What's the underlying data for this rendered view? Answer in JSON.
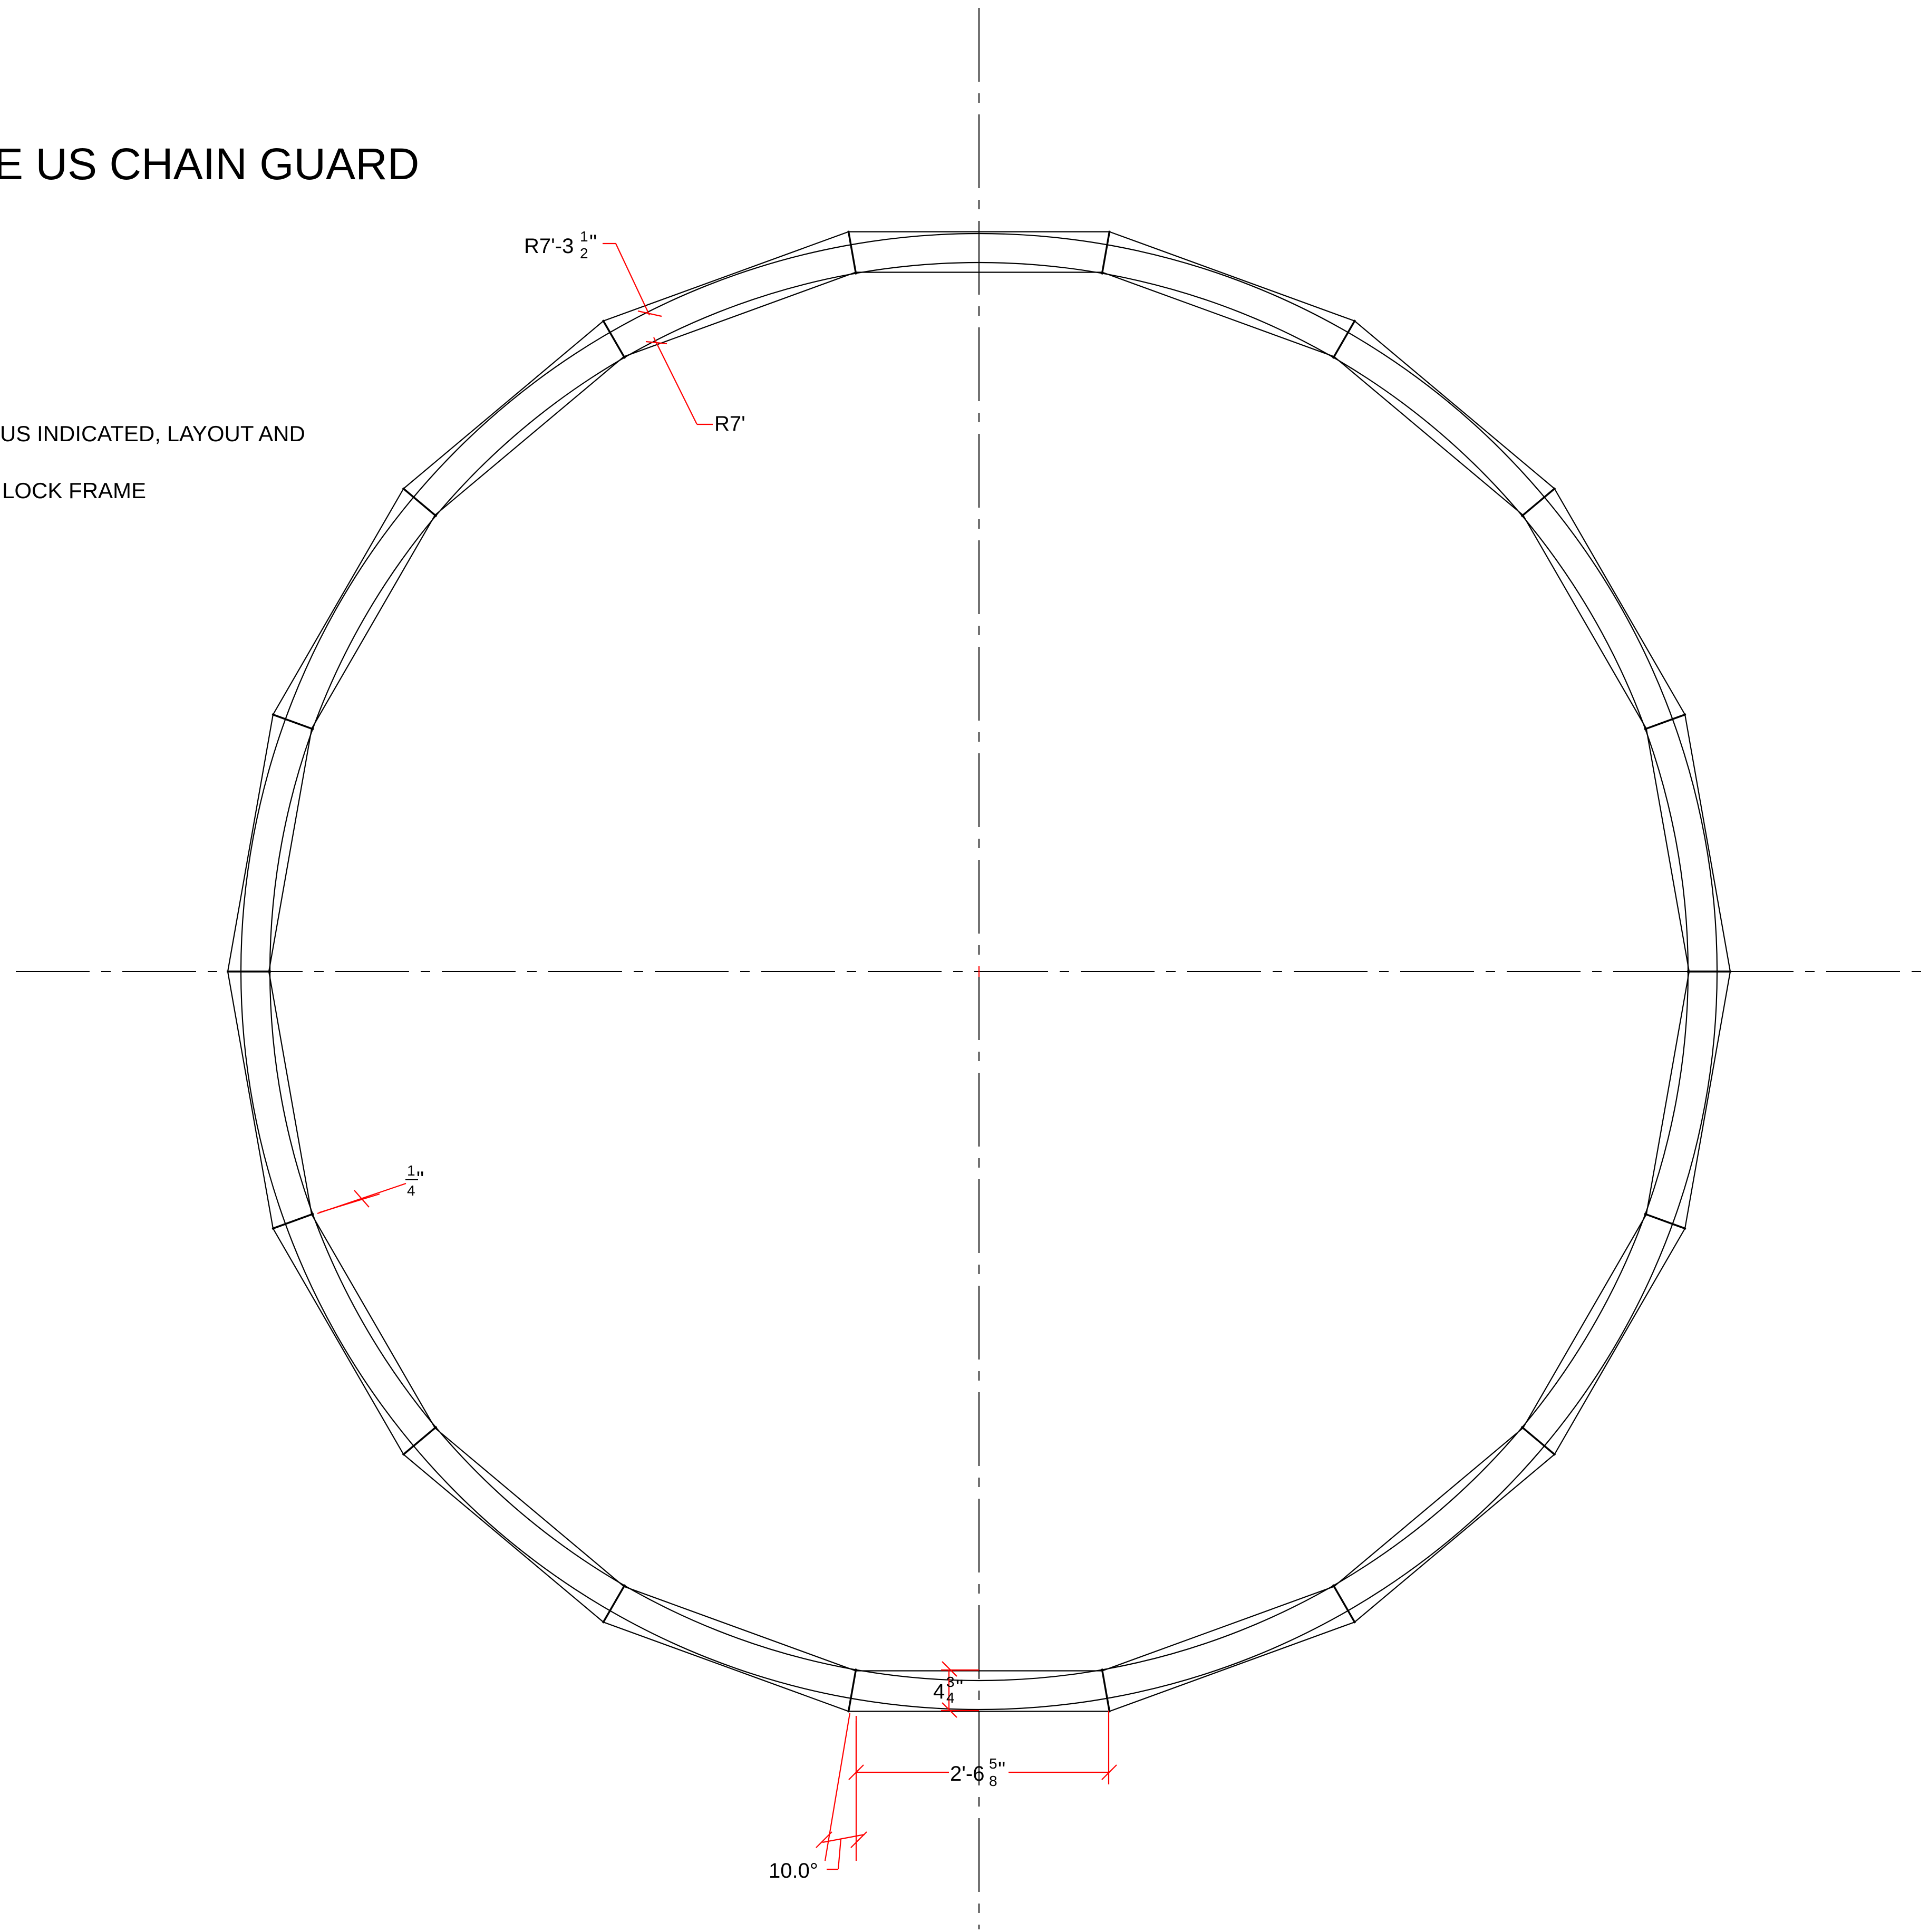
{
  "title": "E US CHAIN GUARD",
  "notes": [
    "US INDICATED, LAYOUT AND",
    "LOCK FRAME"
  ],
  "dimensions": {
    "outer_radius": {
      "main": "R7'-3",
      "frac_num": "1",
      "frac_den": "2",
      "unit": "\""
    },
    "inner_radius": {
      "main": "R7'"
    },
    "thickness": {
      "main": "",
      "frac_num": "1",
      "frac_den": "4",
      "unit": "\""
    },
    "width": {
      "main": "4",
      "frac_num": "3",
      "frac_den": "4",
      "unit": "\""
    },
    "chord_length": {
      "main": "2'-6",
      "frac_num": "5",
      "frac_den": "8",
      "unit": "\""
    },
    "angle": {
      "main": "10.0°"
    }
  },
  "colors": {
    "linework": "#000000",
    "dimension": "#ff0000"
  },
  "segments": 18
}
